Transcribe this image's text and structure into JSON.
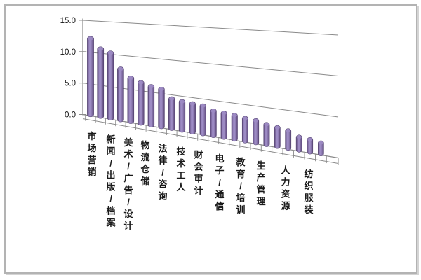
{
  "window": {
    "background": "#ffffff",
    "frame_border_color": "#b3b3b3"
  },
  "chart_data": {
    "type": "bar",
    "style": "3d-cylinder-column",
    "title": "",
    "xlabel": "",
    "ylabel": "",
    "legend": null,
    "grid": true,
    "ylim": [
      0,
      15
    ],
    "yticks": [
      "0.0",
      "5.0",
      "10.0",
      "15.0"
    ],
    "ytick_values": [
      0,
      5,
      10,
      15
    ],
    "label_interval": 2,
    "categories": [
      "市场营销",
      "",
      "新闻/出版/档案",
      "",
      "美术/广告/设计",
      "",
      "物流仓储",
      "",
      "法律/咨询",
      "",
      "技术工人",
      "",
      "财会审计",
      "",
      "电子/通信",
      "",
      "教育/培训",
      "",
      "生产管理",
      "",
      "人力资源",
      "",
      "纺织服装"
    ],
    "values": [
      12.7,
      11.2,
      10.7,
      8.4,
      7.2,
      6.7,
      6.3,
      6.1,
      4.9,
      4.7,
      4.6,
      4.5,
      4.0,
      3.9,
      3.8,
      3.6,
      3.5,
      3.2,
      3.0,
      2.8,
      2.2,
      2.1,
      1.9
    ],
    "bar_color": "#7B63A5",
    "bar_color_light": "#9D8BC4",
    "bar_color_dark": "#5A4577",
    "bar_outline_color": "#4A3A68",
    "gridline_color": "#8a8a8a",
    "axis_color": "#8a8a8a",
    "text_color": "#1a1a1a"
  }
}
